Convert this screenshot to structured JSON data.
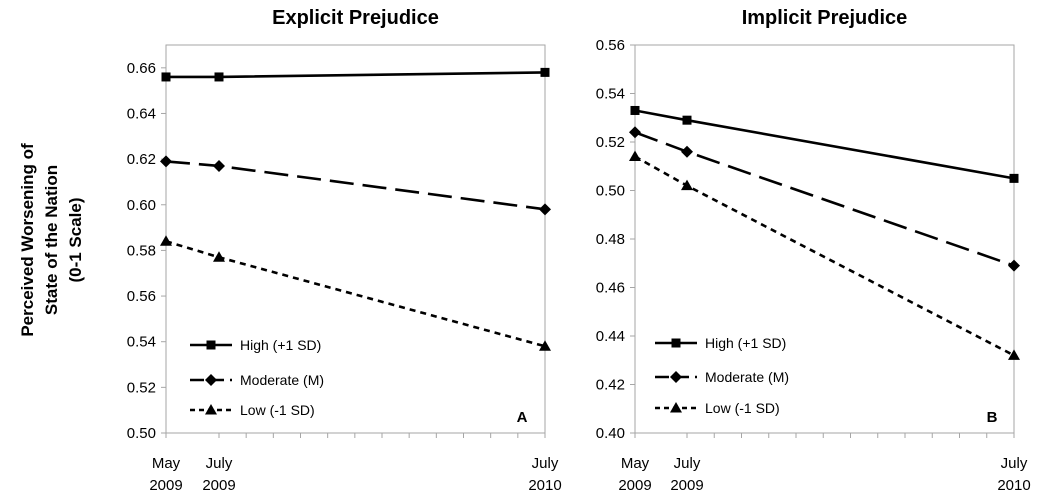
{
  "ylabel_lines": [
    "Perceived Worsening of",
    "State of the Nation",
    "(0-1 Scale)"
  ],
  "chart_data": [
    {
      "type": "line",
      "title": "Explicit Prejudice",
      "panel_label": "A",
      "x": [
        "May 2009",
        "July 2009",
        "July 2010"
      ],
      "x_tick_lines": [
        [
          "May",
          "2009"
        ],
        [
          "July",
          "2009"
        ],
        [
          "July",
          "2010"
        ]
      ],
      "ylim": [
        0.5,
        0.67
      ],
      "yticks": [
        "0.50",
        "0.52",
        "0.54",
        "0.56",
        "0.58",
        "0.60",
        "0.62",
        "0.64",
        "0.66"
      ],
      "legend_position": "bottom-left",
      "series": [
        {
          "name": "High (+1 SD)",
          "marker": "square",
          "dash": "solid",
          "values": [
            0.656,
            0.656,
            0.658
          ]
        },
        {
          "name": "Moderate (M)",
          "marker": "diamond",
          "dash": "long-dash",
          "values": [
            0.619,
            0.617,
            0.598
          ]
        },
        {
          "name": "Low (-1 SD)",
          "marker": "triangle",
          "dash": "short-dash",
          "values": [
            0.584,
            0.577,
            0.538
          ]
        }
      ]
    },
    {
      "type": "line",
      "title": "Implicit Prejudice",
      "panel_label": "B",
      "x": [
        "May 2009",
        "July 2009",
        "July 2010"
      ],
      "x_tick_lines": [
        [
          "May",
          "2009"
        ],
        [
          "July",
          "2009"
        ],
        [
          "July",
          "2010"
        ]
      ],
      "ylim": [
        0.4,
        0.56
      ],
      "yticks": [
        "0.40",
        "0.42",
        "0.44",
        "0.46",
        "0.48",
        "0.50",
        "0.52",
        "0.54",
        "0.56"
      ],
      "legend_position": "bottom-left",
      "series": [
        {
          "name": "High (+1 SD)",
          "marker": "square",
          "dash": "solid",
          "values": [
            0.533,
            0.529,
            0.505
          ]
        },
        {
          "name": "Moderate (M)",
          "marker": "diamond",
          "dash": "long-dash",
          "values": [
            0.524,
            0.516,
            0.469
          ]
        },
        {
          "name": "Low (-1 SD)",
          "marker": "triangle",
          "dash": "short-dash",
          "values": [
            0.514,
            0.502,
            0.432
          ]
        }
      ]
    }
  ]
}
